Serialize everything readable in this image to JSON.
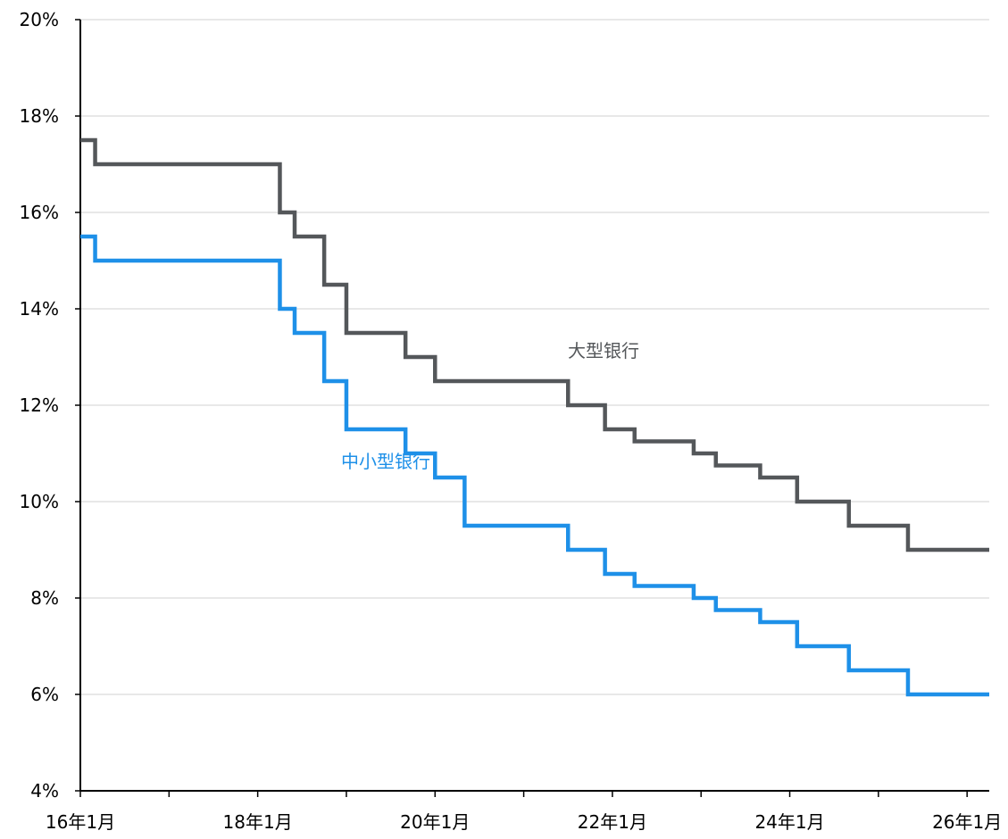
{
  "chart_data": {
    "type": "line",
    "step": true,
    "title": "",
    "xlabel": "",
    "ylabel": "",
    "ylim": [
      4,
      20
    ],
    "yticks": [
      "4%",
      "6%",
      "8%",
      "10%",
      "12%",
      "14%",
      "16%",
      "18%",
      "20%"
    ],
    "ytick_values": [
      4,
      6,
      8,
      10,
      12,
      14,
      16,
      18,
      20
    ],
    "xticks": [
      "16年1月",
      "18年1月",
      "20年1月",
      "22年1月",
      "24年1月",
      "26年1月"
    ],
    "xtick_dates": [
      "2016-01",
      "2018-01",
      "2020-01",
      "2022-01",
      "2024-01",
      "2026-01"
    ],
    "xlim": [
      "2016-01",
      "2026-04"
    ],
    "grid": true,
    "series": [
      {
        "name": "大型银行",
        "color": "#54575a",
        "points": [
          [
            "2016-01",
            17.5
          ],
          [
            "2016-03",
            17.0
          ],
          [
            "2018-04",
            16.0
          ],
          [
            "2018-06",
            15.5
          ],
          [
            "2018-10",
            14.5
          ],
          [
            "2019-01",
            14.0
          ],
          [
            "2019-01",
            13.5
          ],
          [
            "2019-09",
            13.0
          ],
          [
            "2020-01",
            12.5
          ],
          [
            "2021-07",
            12.0
          ],
          [
            "2021-12",
            11.5
          ],
          [
            "2022-04",
            11.25
          ],
          [
            "2022-12",
            11.0
          ],
          [
            "2023-03",
            10.75
          ],
          [
            "2023-09",
            10.5
          ],
          [
            "2024-02",
            10.0
          ],
          [
            "2024-09",
            9.5
          ],
          [
            "2025-05",
            9.0
          ],
          [
            "2026-04",
            9.0
          ]
        ]
      },
      {
        "name": "中小型银行",
        "color": "#1e90e8",
        "points": [
          [
            "2016-01",
            15.5
          ],
          [
            "2016-03",
            15.0
          ],
          [
            "2018-04",
            14.0
          ],
          [
            "2018-06",
            13.5
          ],
          [
            "2018-10",
            12.5
          ],
          [
            "2019-01",
            12.0
          ],
          [
            "2019-01",
            11.5
          ],
          [
            "2019-09",
            11.0
          ],
          [
            "2020-01",
            10.5
          ],
          [
            "2020-05",
            10.0
          ],
          [
            "2020-05",
            9.5
          ],
          [
            "2021-07",
            9.0
          ],
          [
            "2021-12",
            8.5
          ],
          [
            "2022-04",
            8.25
          ],
          [
            "2022-12",
            8.0
          ],
          [
            "2023-03",
            7.75
          ],
          [
            "2023-09",
            7.5
          ],
          [
            "2024-02",
            7.0
          ],
          [
            "2024-09",
            6.5
          ],
          [
            "2025-05",
            6.0
          ],
          [
            "2026-04",
            6.0
          ]
        ]
      }
    ],
    "annotations": [
      {
        "text": "大型银行",
        "series": "大型银行",
        "color": "#54575a"
      },
      {
        "text": "中小型银行",
        "series": "中小型银行",
        "color": "#1e90e8"
      }
    ]
  }
}
